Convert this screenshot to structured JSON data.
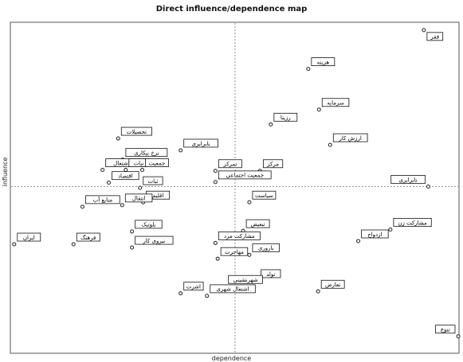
{
  "chart_data": {
    "type": "scatter",
    "title": "Direct influence/dependence map",
    "xlabel": "dependence",
    "ylabel": "influence",
    "xlim": [
      0,
      100
    ],
    "ylim": [
      0,
      100
    ],
    "grid": false,
    "reference_lines": {
      "x": 50,
      "y": 50
    },
    "points": [
      {
        "label": "فقر",
        "x": 92.3,
        "y": 98.8
      },
      {
        "label": "هزینه",
        "x": 66.4,
        "y": 86.7
      },
      {
        "label": "سرمایه",
        "x": 68.8,
        "y": 74.0
      },
      {
        "label": "رزیتا",
        "x": 58.0,
        "y": 69.4
      },
      {
        "label": "ارزش کار",
        "x": 71.3,
        "y": 63.0
      },
      {
        "label": "تحصیلات",
        "x": 23.8,
        "y": 65.0
      },
      {
        "label": "نابرابری",
        "x": 37.8,
        "y": 61.3
      },
      {
        "label": "مرکز",
        "x": 55.6,
        "y": 54.9
      },
      {
        "label": "نرخ بیکاری",
        "x": 24.8,
        "y": 58.4
      },
      {
        "label": "نرخ اشتغال",
        "x": 20.3,
        "y": 55.2
      },
      {
        "label": "نیات",
        "x": 25.5,
        "y": 55.2
      },
      {
        "label": "جمعیت",
        "x": 29.2,
        "y": 55.2
      },
      {
        "label": "تمرکز",
        "x": 45.6,
        "y": 54.9
      },
      {
        "label": "جمعیت اجتماعی",
        "x": 45.6,
        "y": 51.4
      },
      {
        "label": "اقتصاد",
        "x": 21.7,
        "y": 51.2
      },
      {
        "label": "ثبات",
        "x": 28.7,
        "y": 49.6
      },
      {
        "label": "نابرابری",
        "x": 93.3,
        "y": 50.0
      },
      {
        "label": "سیاست",
        "x": 53.2,
        "y": 45.1
      },
      {
        "label": "اقلیم",
        "x": 29.4,
        "y": 45.1
      },
      {
        "label": "انتقال",
        "x": 24.7,
        "y": 44.2
      },
      {
        "label": "منابع آب",
        "x": 15.8,
        "y": 43.7
      },
      {
        "label": "مشارکت زن",
        "x": 84.8,
        "y": 36.6
      },
      {
        "label": "ازدواج",
        "x": 77.6,
        "y": 33.0
      },
      {
        "label": "تبعیض",
        "x": 51.8,
        "y": 36.2
      },
      {
        "label": "بلوتیک",
        "x": 26.9,
        "y": 36.0
      },
      {
        "label": "ایران",
        "x": 0.5,
        "y": 32.0
      },
      {
        "label": "فرهنگ",
        "x": 13.8,
        "y": 32.0
      },
      {
        "label": "نیروی کار",
        "x": 26.9,
        "y": 31.0
      },
      {
        "label": "مشارکت مرد",
        "x": 45.6,
        "y": 32.4
      },
      {
        "label": "باروری",
        "x": 53.2,
        "y": 28.7
      },
      {
        "label": "مهاجرت",
        "x": 46.1,
        "y": 27.5
      },
      {
        "label": "تعارض",
        "x": 68.6,
        "y": 17.3
      },
      {
        "label": "تولد",
        "x": 55.1,
        "y": 20.6
      },
      {
        "label": "شهرنشینی",
        "x": 47.8,
        "y": 18.8
      },
      {
        "label": "اشتغال شهری",
        "x": 43.7,
        "y": 15.9
      },
      {
        "label": "اشرت",
        "x": 37.8,
        "y": 16.7
      },
      {
        "label": "تنوع",
        "x": 100.0,
        "y": 3.3
      }
    ]
  }
}
